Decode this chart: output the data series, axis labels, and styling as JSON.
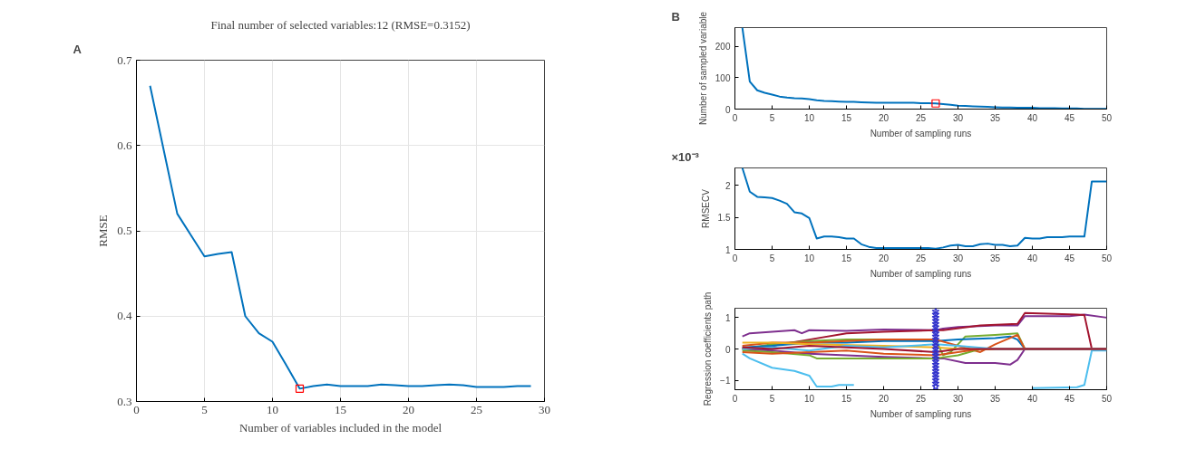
{
  "chart_data": [
    {
      "type": "line",
      "title": "Final number of selected variables:12 (RMSE=0.3152)",
      "xlabel": "Number of variables included in the model",
      "ylabel": "RMSE",
      "annotations": [
        "A"
      ],
      "xlim": [
        0,
        30
      ],
      "ylim": [
        0.3,
        0.7
      ],
      "xticks": [
        0,
        5,
        10,
        15,
        20,
        25,
        30
      ],
      "yticks": [
        0.3,
        0.4,
        0.5,
        0.6,
        0.7
      ],
      "grid": true,
      "series": [
        {
          "color": "#0072bd",
          "x": [
            1,
            2,
            3,
            4,
            5,
            6,
            7,
            8,
            9,
            10,
            11,
            12,
            13,
            14,
            15,
            16,
            17,
            18,
            19,
            20,
            21,
            22,
            23,
            24,
            25,
            26,
            27,
            28,
            29
          ],
          "values": [
            0.67,
            0.595,
            0.52,
            0.495,
            0.47,
            0.473,
            0.475,
            0.4,
            0.38,
            0.37,
            0.343,
            0.315,
            0.318,
            0.32,
            0.318,
            0.318,
            0.318,
            0.32,
            0.319,
            0.318,
            0.318,
            0.319,
            0.32,
            0.319,
            0.317,
            0.317,
            0.317,
            0.318,
            0.318
          ]
        },
        {
          "type": "scatter",
          "marker": "square",
          "color": "#ff0000",
          "x": [
            12
          ],
          "values": [
            0.315
          ]
        }
      ]
    },
    {
      "type": "line",
      "xlabel": "Number of sampling runs",
      "ylabel": "Number of sampled variable",
      "annotations": [
        "B"
      ],
      "xlim": [
        0,
        50
      ],
      "ylim": [
        0,
        260
      ],
      "xticks": [
        0,
        5,
        10,
        15,
        20,
        25,
        30,
        35,
        40,
        45,
        50
      ],
      "yticks": [
        0,
        100,
        200
      ],
      "series": [
        {
          "color": "#0072bd",
          "x": [
            1,
            2,
            3,
            4,
            5,
            6,
            7,
            8,
            9,
            10,
            11,
            12,
            13,
            14,
            15,
            16,
            17,
            18,
            19,
            20,
            21,
            22,
            23,
            24,
            25,
            26,
            27,
            28,
            29,
            30,
            31,
            32,
            33,
            34,
            35,
            36,
            37,
            38,
            39,
            40,
            41,
            42,
            43,
            44,
            45,
            46,
            47,
            48,
            49,
            50
          ],
          "values": [
            260,
            88,
            60,
            52,
            46,
            40,
            37,
            35,
            34,
            32,
            28,
            26,
            25,
            24,
            23,
            23,
            22,
            21,
            20,
            20,
            20,
            20,
            20,
            20,
            19,
            19,
            18,
            16,
            14,
            11,
            10,
            9,
            8,
            7,
            6,
            5,
            5,
            4,
            4,
            4,
            3,
            3,
            3,
            2,
            2,
            2,
            1,
            1,
            1,
            1
          ]
        },
        {
          "type": "scatter",
          "marker": "square",
          "color": "#ff0000",
          "x": [
            27
          ],
          "values": [
            18
          ]
        }
      ]
    },
    {
      "type": "line",
      "xlabel": "Number of sampling runs",
      "ylabel": "RMSECV",
      "annotations": [
        "×10⁻³"
      ],
      "xlim": [
        0,
        50
      ],
      "ylim": [
        1,
        2.27
      ],
      "xticks": [
        0,
        5,
        10,
        15,
        20,
        25,
        30,
        35,
        40,
        45,
        50
      ],
      "yticks": [
        1,
        1.5,
        2
      ],
      "series": [
        {
          "color": "#0072bd",
          "x": [
            1,
            2,
            3,
            4,
            5,
            6,
            7,
            8,
            9,
            10,
            11,
            12,
            13,
            14,
            15,
            16,
            17,
            18,
            19,
            20,
            21,
            22,
            23,
            24,
            25,
            26,
            27,
            28,
            29,
            30,
            31,
            32,
            33,
            34,
            35,
            36,
            37,
            38,
            39,
            40,
            41,
            42,
            43,
            44,
            45,
            46,
            47,
            48,
            49,
            50
          ],
          "values": [
            2.27,
            1.9,
            1.82,
            1.81,
            1.8,
            1.76,
            1.71,
            1.58,
            1.56,
            1.49,
            1.17,
            1.2,
            1.2,
            1.19,
            1.17,
            1.17,
            1.08,
            1.04,
            1.02,
            1.02,
            1.02,
            1.02,
            1.02,
            1.02,
            1.02,
            1.02,
            1.01,
            1.03,
            1.06,
            1.07,
            1.05,
            1.05,
            1.08,
            1.09,
            1.07,
            1.07,
            1.05,
            1.06,
            1.18,
            1.17,
            1.17,
            1.19,
            1.19,
            1.19,
            1.2,
            1.2,
            1.2,
            2.06,
            2.06,
            2.06
          ]
        }
      ]
    },
    {
      "type": "line",
      "xlabel": "Number of sampling runs",
      "ylabel": "Regression coefficients path",
      "xlim": [
        0,
        50
      ],
      "ylim": [
        -1.3,
        1.3
      ],
      "xticks": [
        0,
        5,
        10,
        15,
        20,
        25,
        30,
        35,
        40,
        45,
        50
      ],
      "yticks": [
        -1,
        0,
        1
      ],
      "series": [
        {
          "color": "#7e2f8e",
          "x": [
            1,
            2,
            5,
            8,
            9,
            10,
            15,
            20,
            27,
            28,
            30,
            35,
            38,
            39,
            45,
            47,
            50
          ],
          "values": [
            0.4,
            0.5,
            0.55,
            0.6,
            0.5,
            0.6,
            0.58,
            0.62,
            0.6,
            0.65,
            0.7,
            0.75,
            0.75,
            1.05,
            1.05,
            1.1,
            1.0
          ]
        },
        {
          "color": "#a2142f",
          "x": [
            1,
            5,
            10,
            15,
            20,
            27,
            28,
            33,
            38,
            39,
            46,
            47,
            48,
            50
          ],
          "values": [
            0,
            0.1,
            0.3,
            0.5,
            0.55,
            0.6,
            0.6,
            0.75,
            0.8,
            1.15,
            1.1,
            1.08,
            0,
            0
          ]
        },
        {
          "color": "#4dbeee",
          "x": [
            1,
            2,
            5,
            8,
            10,
            11,
            13,
            14,
            16,
            17,
            20,
            25,
            27,
            39,
            40,
            46,
            47,
            48,
            50
          ],
          "values": [
            -0.15,
            -0.3,
            -0.6,
            -0.7,
            -0.85,
            -1.2,
            -1.2,
            -1.15,
            -1.15,
            null,
            null,
            null,
            null,
            null,
            -1.25,
            -1.22,
            -1.15,
            -0.05,
            -0.05
          ]
        },
        {
          "color": "#7e2f8e",
          "x": [
            1,
            5,
            10,
            15,
            20,
            27,
            28,
            31,
            35,
            37,
            38,
            39,
            50
          ],
          "values": [
            0,
            -0.05,
            -0.15,
            -0.2,
            -0.25,
            -0.3,
            -0.3,
            -0.45,
            -0.45,
            -0.5,
            -0.35,
            0,
            0
          ]
        },
        {
          "color": "#77ac30",
          "x": [
            1,
            5,
            10,
            15,
            20,
            27,
            28,
            29,
            31,
            35,
            38,
            39,
            50
          ],
          "values": [
            0,
            0.15,
            0.25,
            0.3,
            0.3,
            0.3,
            -0.2,
            -0.1,
            0.4,
            0.45,
            0.5,
            0,
            0
          ]
        },
        {
          "color": "#0072bd",
          "x": [
            1,
            5,
            10,
            15,
            20,
            27,
            30,
            35,
            37,
            38,
            39,
            50
          ],
          "values": [
            0.05,
            0.1,
            0.2,
            0.2,
            0.25,
            0.25,
            0.3,
            0.35,
            0.4,
            0.3,
            0,
            0
          ]
        },
        {
          "color": "#d95319",
          "x": [
            1,
            5,
            10,
            15,
            20,
            27,
            30,
            33,
            35,
            38,
            39,
            50
          ],
          "values": [
            0.1,
            0.2,
            0.2,
            0.25,
            0.3,
            0.3,
            0.1,
            -0.1,
            0.15,
            0.45,
            0,
            0
          ]
        },
        {
          "color": "#edb120",
          "x": [
            1,
            5,
            10,
            20,
            27,
            30,
            35
          ],
          "values": [
            0.2,
            0.2,
            0.15,
            0.1,
            0.05,
            0,
            0
          ]
        },
        {
          "color": "#77ac30",
          "x": [
            1,
            5,
            10,
            11,
            15,
            20,
            27,
            30,
            33,
            35,
            50
          ],
          "values": [
            -0.05,
            -0.1,
            -0.2,
            -0.3,
            -0.3,
            -0.3,
            -0.3,
            -0.2,
            0,
            0,
            0
          ]
        },
        {
          "color": "#d95319",
          "x": [
            1,
            5,
            10,
            15,
            20,
            27,
            30,
            33,
            50
          ],
          "values": [
            -0.1,
            -0.15,
            -0.1,
            -0.05,
            -0.15,
            -0.2,
            -0.1,
            0,
            0
          ]
        },
        {
          "color": "#4dbeee",
          "x": [
            1,
            5,
            10,
            15,
            20,
            27,
            30,
            35,
            50
          ],
          "values": [
            0,
            0.05,
            -0.05,
            0.1,
            0.05,
            0.15,
            0.1,
            0,
            0
          ]
        },
        {
          "color": "#a2142f",
          "x": [
            1,
            5,
            10,
            15,
            20,
            27,
            30,
            50
          ],
          "values": [
            0.05,
            0,
            0.1,
            0.05,
            0.0,
            -0.1,
            0,
            0
          ]
        },
        {
          "type": "scatter",
          "marker": "star",
          "color": "#3333cc",
          "x": [
            27,
            27,
            27,
            27,
            27,
            27,
            27,
            27,
            27,
            27,
            27,
            27,
            27,
            27,
            27,
            27,
            27,
            27,
            27,
            27,
            27,
            27,
            27,
            27,
            27
          ],
          "values": [
            -1.2,
            -1.1,
            -1.0,
            -0.9,
            -0.8,
            -0.7,
            -0.6,
            -0.5,
            -0.4,
            -0.3,
            -0.2,
            -0.1,
            0,
            0.1,
            0.2,
            0.3,
            0.4,
            0.5,
            0.6,
            0.7,
            0.8,
            0.9,
            1.0,
            1.1,
            1.2
          ]
        }
      ]
    }
  ]
}
